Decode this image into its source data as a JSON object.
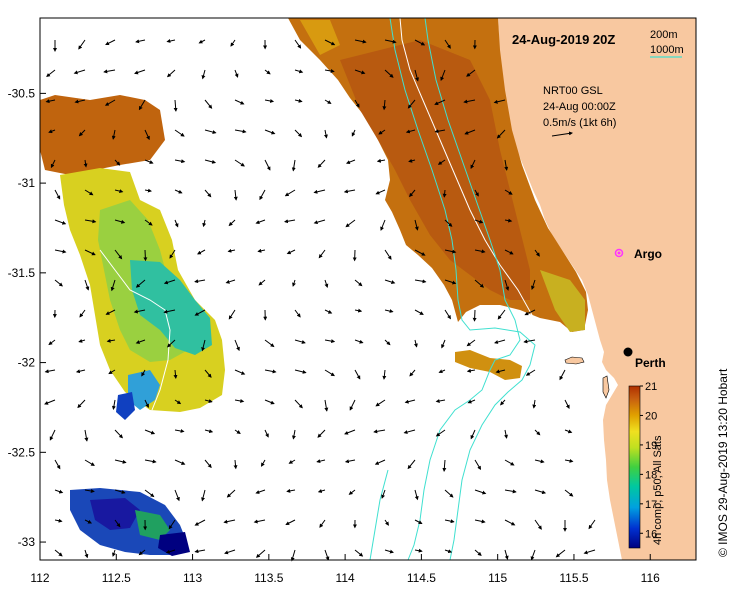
{
  "title": "24-Aug-2019 20Z",
  "product": {
    "line1": "NRT00 GSL",
    "line2": "24-Aug 00:00Z",
    "line3": "0.5m/s (1kt 6h)"
  },
  "isobath_legend": {
    "line1": "200m",
    "line2": "1000m",
    "color_200": "#ffffff",
    "color_1000": "#40e0d0"
  },
  "places": {
    "argo": "Argo",
    "perth": "Perth"
  },
  "colorbar": {
    "min": 15.5,
    "max": 21,
    "ticks": [
      "16",
      "17",
      "18",
      "19",
      "20",
      "21"
    ],
    "tick_values": [
      16,
      17,
      18,
      19,
      20,
      21
    ],
    "label": "4h comp, p50, All Sats"
  },
  "credit": "© IMOS 29-Aug-2019 13:20 Hobart",
  "axes": {
    "x_ticks": [
      "112",
      "112.5",
      "113",
      "113.5",
      "114",
      "114.5",
      "115",
      "115.5",
      "116"
    ],
    "x_values": [
      112,
      112.5,
      113,
      113.5,
      114,
      114.5,
      115,
      115.5,
      116
    ],
    "y_ticks": [
      "-30.5",
      "-31",
      "-31.5",
      "-32",
      "-32.5",
      "-33"
    ],
    "y_values": [
      -30.5,
      -31,
      -31.5,
      -32,
      -32.5,
      -33
    ],
    "lon_range": [
      112,
      116.3
    ],
    "lat_range": [
      -30.08,
      -33.1
    ]
  },
  "colors": {
    "land": "#f8c8a0",
    "ocean": "#ffffff",
    "argo_marker": "#ff33ff",
    "perth_marker": "#000000"
  }
}
